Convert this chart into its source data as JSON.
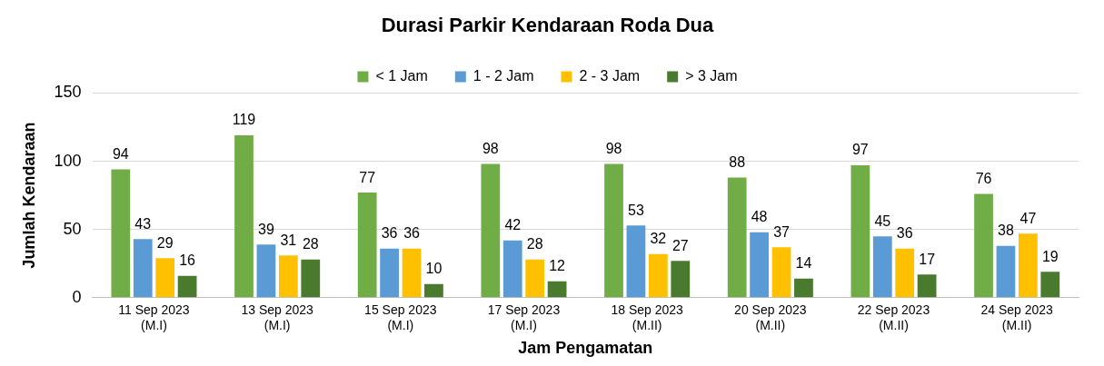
{
  "chart_data": {
    "type": "bar",
    "title": "Durasi Parkir Kendaraan Roda Dua",
    "xlabel": "Jam Pengamatan",
    "ylabel": "Jumlah Kendaraan",
    "categories": [
      "11 Sep 2023\n(M.I)",
      "13 Sep 2023\n(M.I)",
      "15 Sep 2023\n(M.I)",
      "17 Sep 2023\n(M.I)",
      "18 Sep 2023\n(M.II)",
      "20 Sep 2023\n(M.II)",
      "22 Sep 2023\n(M.II)",
      "24 Sep 2023\n(M.II)"
    ],
    "series": [
      {
        "name": "< 1 Jam",
        "color": "#70ad47",
        "values": [
          94,
          119,
          77,
          98,
          98,
          88,
          97,
          76
        ]
      },
      {
        "name": "1 - 2 Jam",
        "color": "#5b9bd5",
        "values": [
          43,
          39,
          36,
          42,
          53,
          48,
          45,
          38
        ]
      },
      {
        "name": "2 - 3 Jam",
        "color": "#ffc000",
        "values": [
          29,
          31,
          36,
          28,
          32,
          37,
          36,
          47
        ]
      },
      {
        "name": "> 3 Jam",
        "color": "#4a7a2e",
        "values": [
          16,
          28,
          10,
          12,
          27,
          14,
          17,
          19
        ]
      }
    ],
    "ylim": [
      0,
      150
    ],
    "yticks": [
      0,
      50,
      100,
      150
    ],
    "grid": "y",
    "legend": "top",
    "data_labels": true
  }
}
